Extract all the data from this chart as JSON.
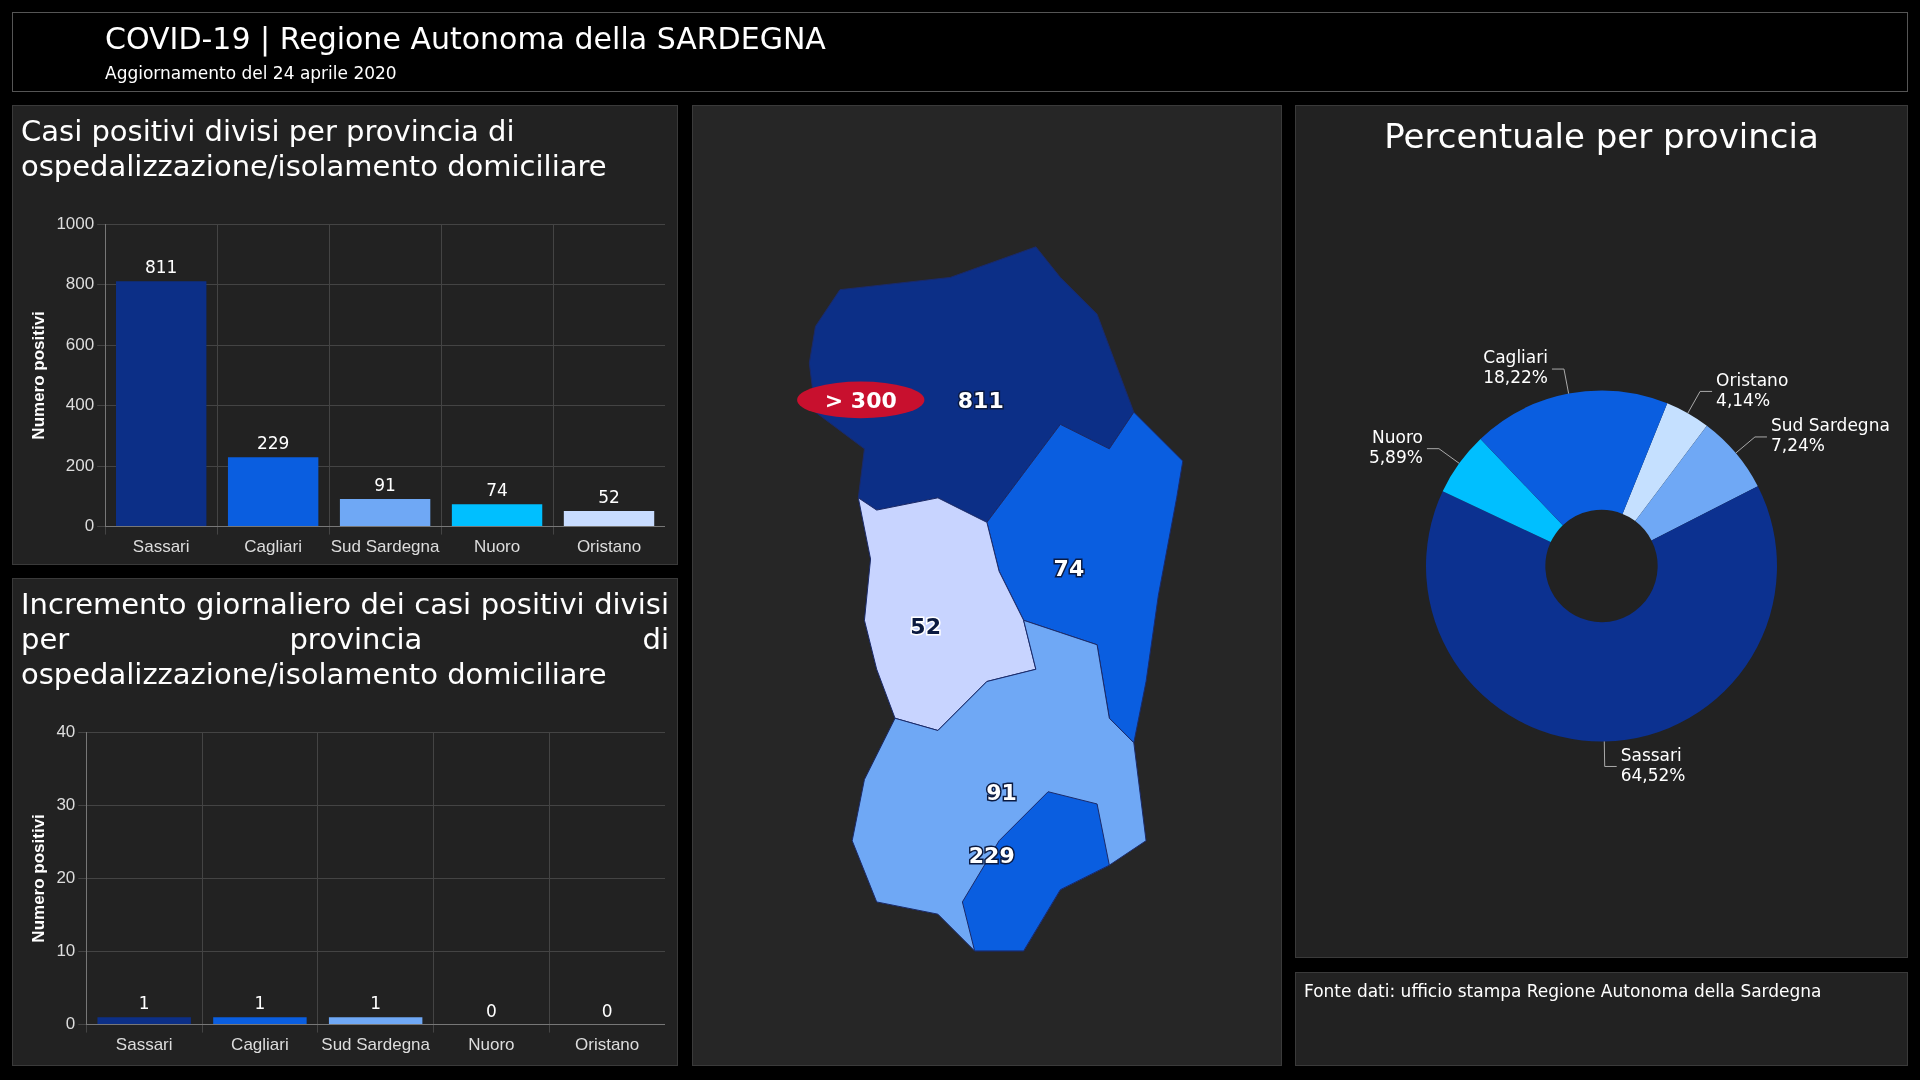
{
  "chart_data": [
    {
      "type": "other",
      "title": "COVID-19 | Regione Autonoma della SARDEGNA",
      "subtitle": "Aggiornamento del 24 aprile 2020"
    },
    {
      "type": "bar",
      "title": "Casi positivi divisi per provincia di ospedalizzazione/isolamento domiciliare",
      "ylabel": "Numero positivi",
      "categories": [
        "Sassari",
        "Cagliari",
        "Sud Sardegna",
        "Nuoro",
        "Oristano"
      ],
      "values": [
        811,
        229,
        91,
        74,
        52
      ],
      "colors": [
        "#0c2f87",
        "#0a5ee0",
        "#6fa8f5",
        "#00bfff",
        "#c8dcff"
      ],
      "ylim": [
        0,
        1000
      ],
      "yticks": [
        0,
        200,
        400,
        600,
        800,
        1000
      ],
      "grid": true,
      "data_labels": true
    },
    {
      "type": "other",
      "categories": [
        null,
        null,
        null,
        null,
        null
      ],
      "values": [
        811,
        74,
        52,
        91,
        229
      ],
      "colors": [
        "#0c2f87",
        "#0a5ee0",
        "#c8d4ff",
        "#6fa8f5",
        "#0a5ee0"
      ],
      "annotations": [
        "> 300"
      ],
      "data_labels": true
    },
    {
      "type": "donut",
      "title": "Percentuale per provincia",
      "categories": [
        "Oristano",
        "Sud Sardegna",
        "Sassari",
        "Nuoro",
        "Cagliari"
      ],
      "values": [
        4.14,
        7.24,
        64.52,
        5.89,
        18.22
      ],
      "colors": [
        "#c5e0ff",
        "#6fa8f5",
        "#0c3190",
        "#00bfff",
        "#0a5ee0"
      ],
      "value_labels": [
        "4,14%",
        "7,24%",
        "64,52%",
        "5,89%",
        "18,22%"
      ]
    },
    {
      "type": "bar",
      "title": "Incremento giornaliero dei casi positivi divisi per provincia di ospedalizzazione/isolamento domiciliare",
      "ylabel": "Numero positivi",
      "categories": [
        "Sassari",
        "Cagliari",
        "Sud Sardegna",
        "Nuoro",
        "Oristano"
      ],
      "values": [
        1,
        1,
        1,
        0,
        0
      ],
      "colors": [
        "#0c2f87",
        "#0a5ee0",
        "#6fa8f5",
        "#00bfff",
        "#c8dcff"
      ],
      "ylim": [
        0,
        40
      ],
      "yticks": [
        0,
        10,
        20,
        30,
        40
      ],
      "grid": true,
      "data_labels": true
    },
    {
      "type": "other",
      "annotations": [
        "Fonte dati: ufficio stampa Regione Autonoma della Sardegna"
      ]
    }
  ]
}
